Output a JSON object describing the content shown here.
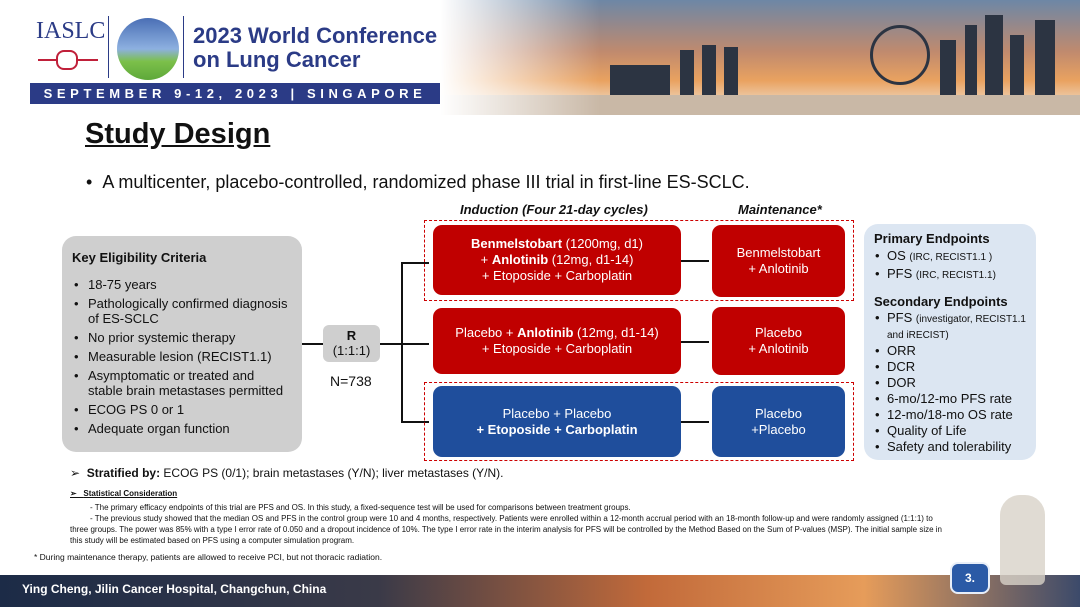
{
  "header": {
    "org": "IASLC",
    "conference": "2023 World Conference on Lung Cancer",
    "conference_line1": "2023 World Conference",
    "conference_line2": "on Lung Cancer",
    "date_location": "SEPTEMBER 9-12, 2023 | SINGAPORE"
  },
  "title": "Study Design",
  "bullet": "A multicenter, placebo-controlled, randomized phase III trial in first-line ES-SCLC.",
  "eligibility": {
    "heading": "Key Eligibility Criteria",
    "items": [
      "18-75 years",
      "Pathologically confirmed diagnosis of ES-SCLC",
      "No prior systemic therapy",
      "Measurable lesion (RECIST1.1)",
      "Asymptomatic or treated and stable brain metastases permitted",
      "ECOG PS 0 or 1",
      "Adequate organ function"
    ]
  },
  "randomization": {
    "label": "R",
    "ratio": "(1:1:1)",
    "n": "N=738"
  },
  "induction_header": "Induction (Four 21-day cycles)",
  "maintenance_header": "Maintenance*",
  "arms": [
    {
      "drug1": "Benmelstobart",
      "dose1": " (1200mg, d1)",
      "plus": "+ ",
      "drug2": "Anlotinib",
      "dose2": " (12mg, d1-14)",
      "chemo": "+ Etoposide + Carboplatin",
      "maintenance_l1": "Benmelstobart",
      "maintenance_l2": "+ Anlotinib",
      "color": "#c00000"
    },
    {
      "drug1": "Placebo + ",
      "drug2": "Anlotinib",
      "dose2": " (12mg, d1-14)",
      "chemo": "+ Etoposide + Carboplatin",
      "maintenance_l1": "Placebo",
      "maintenance_l2": "+ Anlotinib",
      "color": "#c00000"
    },
    {
      "line1": "Placebo + Placebo",
      "plus": "+ ",
      "chemo_b1": "Etoposide",
      "amp": " + ",
      "chemo_b2": "Carboplatin",
      "maintenance_l1": "Placebo",
      "maintenance_l2": "+Placebo",
      "color": "#1f4e9c"
    }
  ],
  "endpoints": {
    "primary_heading": "Primary Endpoints",
    "primary": [
      {
        "name": "OS ",
        "note": "(IRC, RECIST1.1 )"
      },
      {
        "name": "PFS ",
        "note": "(IRC, RECIST1.1)"
      }
    ],
    "secondary_heading": "Secondary Endpoints",
    "secondary_pfs": {
      "name": "PFS ",
      "note": "(investigator, RECIST1.1 and iRECIST)"
    },
    "secondary": [
      "ORR",
      "DCR",
      "DOR",
      "6-mo/12-mo PFS rate",
      "12-mo/18-mo OS rate",
      "Quality of Life",
      "Safety and tolerability"
    ]
  },
  "stratified": {
    "label": "Stratified by:",
    "text": " ECOG PS (0/1); brain metastases (Y/N); liver metastases (Y/N)."
  },
  "statistical": {
    "heading": "Statistical Consideration",
    "p1": "- The primary efficacy endpoints of this trial are PFS and OS. In this study, a fixed-sequence test will be used for comparisons between treatment groups.",
    "p2": "- The previous study showed that the median OS and PFS in the control group were 10 and 4 months, respectively. Patients were enrolled within a 12-month accrual period with an 18-month follow-up and were randomly assigned (1:1:1) to three groups. The power was 85% with a type I error rate of 0.050 and a dropout incidence of 10%. The type I error rate in the interim analysis for PFS will be controlled by the Method Based on the Sum of P-values (MSP). The initial sample size in this study will be estimated based on PFS using a computer simulation program."
  },
  "footnote": "* During maintenance therapy, patients are allowed to receive PCI, but not thoracic radiation.",
  "footer": {
    "presenter": "Ying Cheng, Jilin Cancer Hospital, Changchun, China",
    "page": "3."
  }
}
